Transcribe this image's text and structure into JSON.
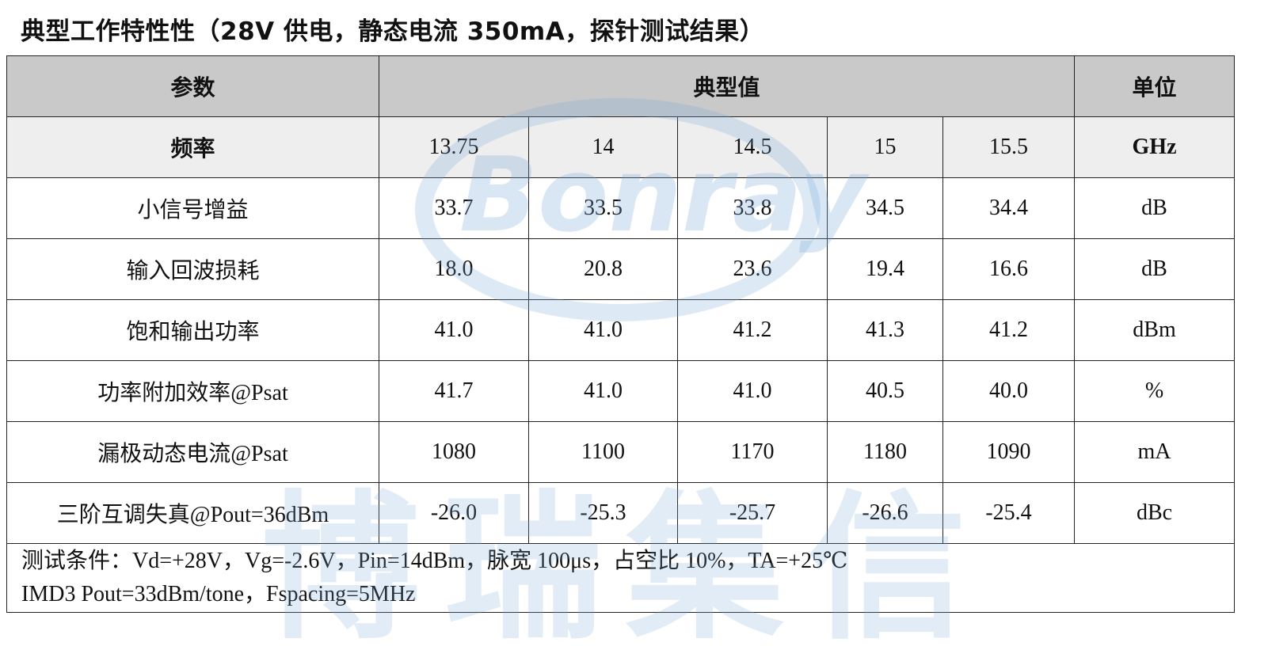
{
  "title": "典型工作特性性（28V 供电，静态电流 350mA，探针测试结果）",
  "watermark": {
    "logo": "Bonray",
    "text": "博瑞集信"
  },
  "table": {
    "header": [
      "参数",
      "典型值",
      "单位"
    ],
    "frequency": {
      "label": "频率",
      "values": [
        "13.75",
        "14",
        "14.5",
        "15",
        "15.5"
      ],
      "unit": "GHz"
    },
    "rows": [
      {
        "label": "小信号增益",
        "values": [
          "33.7",
          "33.5",
          "33.8",
          "34.5",
          "34.4"
        ],
        "unit": "dB"
      },
      {
        "label": "输入回波损耗",
        "values": [
          "18.0",
          "20.8",
          "23.6",
          "19.4",
          "16.6"
        ],
        "unit": "dB"
      },
      {
        "label": "饱和输出功率",
        "values": [
          "41.0",
          "41.0",
          "41.2",
          "41.3",
          "41.2"
        ],
        "unit": "dBm"
      },
      {
        "label": "功率附加效率@Psat",
        "values": [
          "41.7",
          "41.0",
          "41.0",
          "40.5",
          "40.0"
        ],
        "unit": "%"
      },
      {
        "label": "漏极动态电流@Psat",
        "values": [
          "1080",
          "1100",
          "1170",
          "1180",
          "1090"
        ],
        "unit": "mA"
      },
      {
        "label": "三阶互调失真@Pout=36dBm",
        "values": [
          "-26.0",
          "-25.3",
          "-25.7",
          "-26.6",
          "-25.4"
        ],
        "unit": "dBc"
      }
    ],
    "notes": [
      "测试条件：Vd=+28V，Vg=-2.6V，Pin=14dBm，脉宽 100μs，占空比 10%，TA=+25℃",
      "IMD3 Pout=33dBm/tone，Fspacing=5MHz"
    ]
  }
}
